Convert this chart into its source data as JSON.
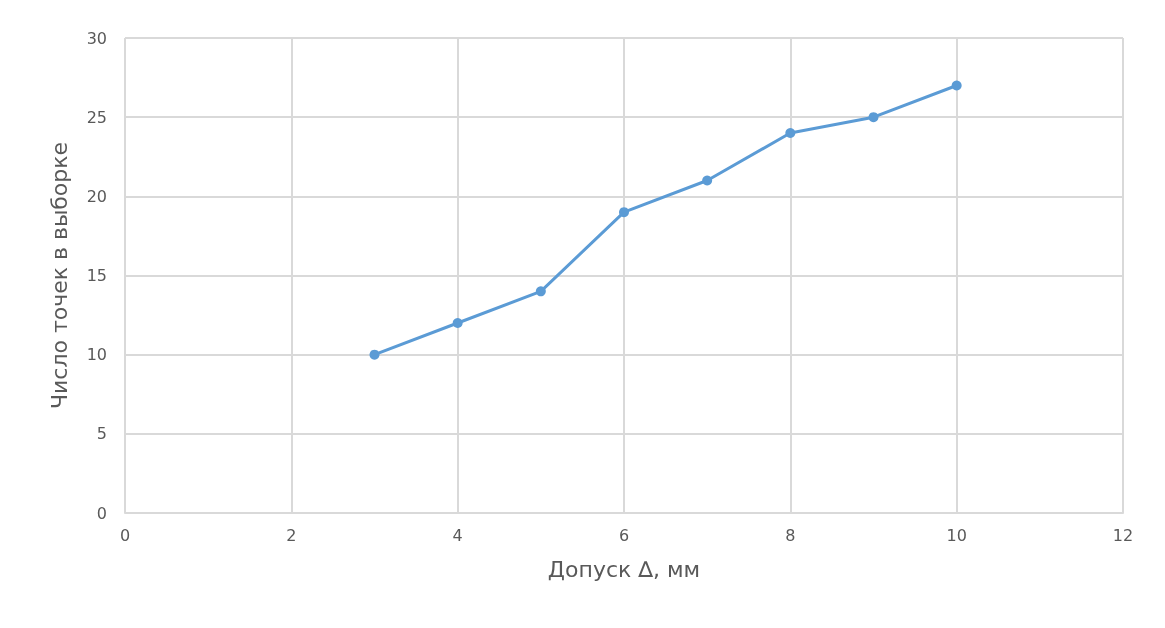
{
  "chart_data": {
    "type": "line",
    "xlabel": "Допуск ∆, мм",
    "ylabel": "Число точек в выборке",
    "x": [
      3,
      4,
      5,
      6,
      7,
      8,
      9,
      10
    ],
    "series": [
      {
        "color": "#5b9bd5",
        "values": [
          10,
          12,
          14,
          19,
          21,
          24,
          25,
          27
        ]
      }
    ],
    "xlim": [
      0,
      12
    ],
    "xticks": [
      0,
      2,
      4,
      6,
      8,
      10,
      12
    ],
    "ylim": [
      0,
      30
    ],
    "yticks": [
      0,
      5,
      10,
      15,
      20,
      25,
      30
    ],
    "grid": true,
    "marker": "circle",
    "line_style": "solid"
  }
}
